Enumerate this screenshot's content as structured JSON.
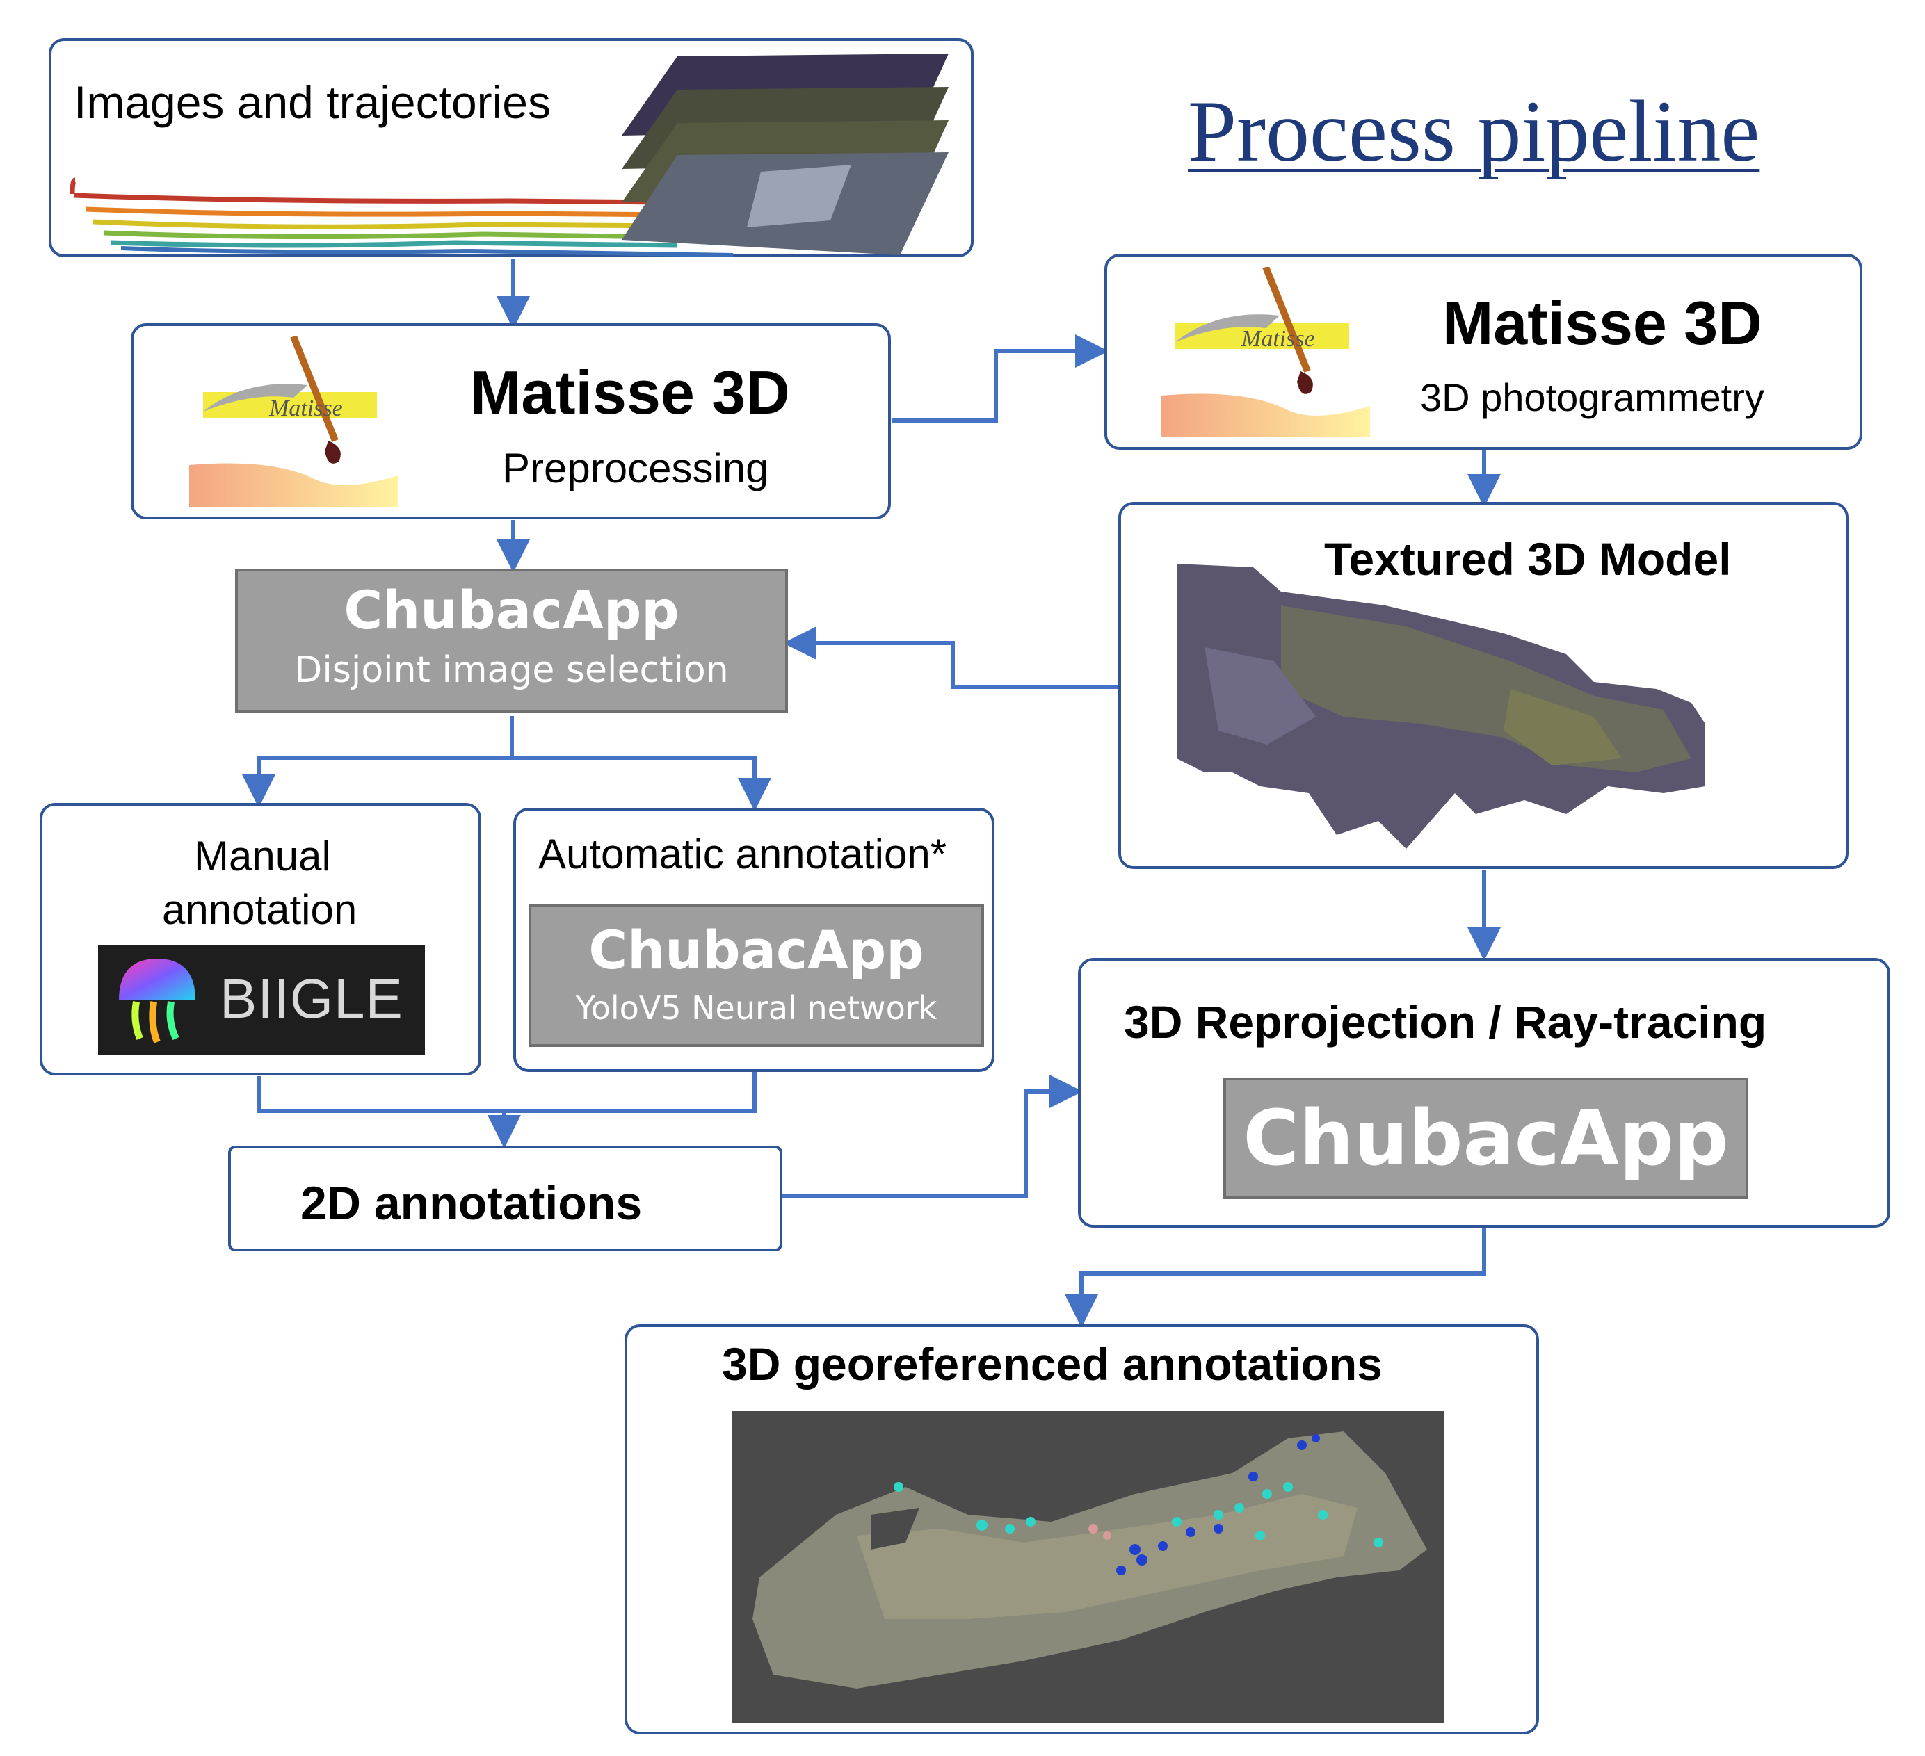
{
  "title": "Process pipeline",
  "nodes": {
    "images": {
      "label": "Images and trajectories"
    },
    "matisse_pre": {
      "name": "Matisse 3D",
      "sub": "Preprocessing",
      "logo_text": "Matisse"
    },
    "matisse_photo": {
      "name": "Matisse 3D",
      "sub": "3D photogrammetry",
      "logo_text": "Matisse"
    },
    "chubac_select": {
      "name": "ChubacApp",
      "sub": "Disjoint image selection"
    },
    "textured": {
      "label": "Textured 3D Model"
    },
    "manual": {
      "line1": "Manual",
      "line2": "annotation",
      "biigle": "BIIGLE"
    },
    "auto": {
      "label": "Automatic annotation*",
      "name": "ChubacApp",
      "sub": "YoloV5 Neural network"
    },
    "annot2d": {
      "label": "2D annotations"
    },
    "reproj": {
      "label": "3D Reprojection / Ray-tracing",
      "name": "ChubacApp"
    },
    "geo3d": {
      "label": "3D georeferenced annotations"
    }
  },
  "colors": {
    "border": "#2f5597",
    "arrow": "#4472c4",
    "gray_box": "#9e9e9e",
    "title": "#1f3a7a"
  }
}
